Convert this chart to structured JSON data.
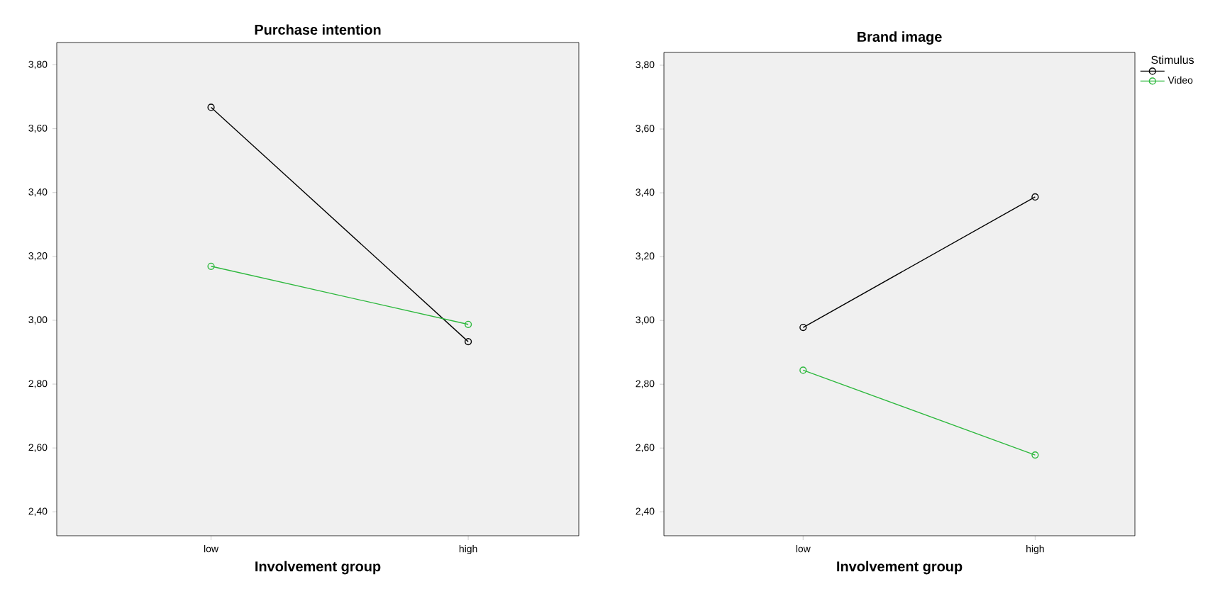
{
  "chart_data": [
    {
      "type": "line",
      "title": "Purchase intention",
      "xlabel": "Involvement group",
      "categories": [
        "low",
        "high"
      ],
      "series": [
        {
          "color": "#000000",
          "values": [
            3.667,
            2.933
          ]
        },
        {
          "color": "#2db83d",
          "values": [
            3.169,
            2.987
          ]
        }
      ],
      "ylim": [
        2.325,
        3.87
      ],
      "yticks": [
        {
          "value": 2.4,
          "label": "2,40"
        },
        {
          "value": 2.6,
          "label": "2,60"
        },
        {
          "value": 2.8,
          "label": "2,80"
        },
        {
          "value": 3.0,
          "label": "3,00"
        },
        {
          "value": 3.2,
          "label": "3,20"
        },
        {
          "value": 3.4,
          "label": "3,40"
        },
        {
          "value": 3.6,
          "label": "3,60"
        },
        {
          "value": 3.8,
          "label": "3,80"
        }
      ],
      "marker": "circle",
      "grid": false,
      "legend": false
    },
    {
      "type": "line",
      "title": "Brand image",
      "xlabel": "Involvement group",
      "categories": [
        "low",
        "high"
      ],
      "legend_title": "Stimulus",
      "series": [
        {
          "color": "#000000",
          "values": [
            2.978,
            3.387
          ]
        },
        {
          "name": "Video",
          "color": "#2db83d",
          "values": [
            2.844,
            2.578
          ]
        }
      ],
      "ylim": [
        2.325,
        3.84
      ],
      "yticks": [
        {
          "value": 2.4,
          "label": "2,40"
        },
        {
          "value": 2.6,
          "label": "2,60"
        },
        {
          "value": 2.8,
          "label": "2,80"
        },
        {
          "value": 3.0,
          "label": "3,00"
        },
        {
          "value": 3.2,
          "label": "3,20"
        },
        {
          "value": 3.4,
          "label": "3,40"
        },
        {
          "value": 3.6,
          "label": "3,60"
        },
        {
          "value": 3.8,
          "label": "3,80"
        }
      ],
      "marker": "circle",
      "grid": false,
      "legend": "top right"
    }
  ]
}
